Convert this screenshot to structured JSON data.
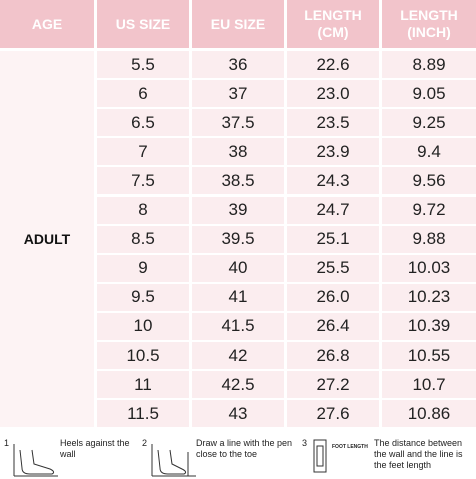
{
  "table": {
    "header": [
      "AGE",
      "US SIZE",
      "EU SIZE",
      "LENGTH (CM)",
      "LENGTH (INCH)"
    ],
    "group": "ADULT",
    "rows": [
      [
        "5.5",
        "36",
        "22.6",
        "8.89"
      ],
      [
        "6",
        "37",
        "23.0",
        "9.05"
      ],
      [
        "6.5",
        "37.5",
        "23.5",
        "9.25"
      ],
      [
        "7",
        "38",
        "23.9",
        "9.4"
      ],
      [
        "7.5",
        "38.5",
        "24.3",
        "9.56"
      ],
      [
        "8",
        "39",
        "24.7",
        "9.72"
      ],
      [
        "8.5",
        "39.5",
        "25.1",
        "9.88"
      ],
      [
        "9",
        "40",
        "25.5",
        "10.03"
      ],
      [
        "9.5",
        "41",
        "26.0",
        "10.23"
      ],
      [
        "10",
        "41.5",
        "26.4",
        "10.39"
      ],
      [
        "10.5",
        "42",
        "26.8",
        "10.55"
      ],
      [
        "11",
        "42.5",
        "27.2",
        "10.7"
      ],
      [
        "11.5",
        "43",
        "27.6",
        "10.86"
      ]
    ]
  },
  "steps": [
    {
      "number": "1",
      "text": "Heels against the wall"
    },
    {
      "number": "2",
      "text": "Draw a line with the pen close to the toe"
    },
    {
      "number": "3",
      "icon_label": "FOOT LENGTH",
      "text": "The distance between the wall and the line is the feet length"
    }
  ]
}
